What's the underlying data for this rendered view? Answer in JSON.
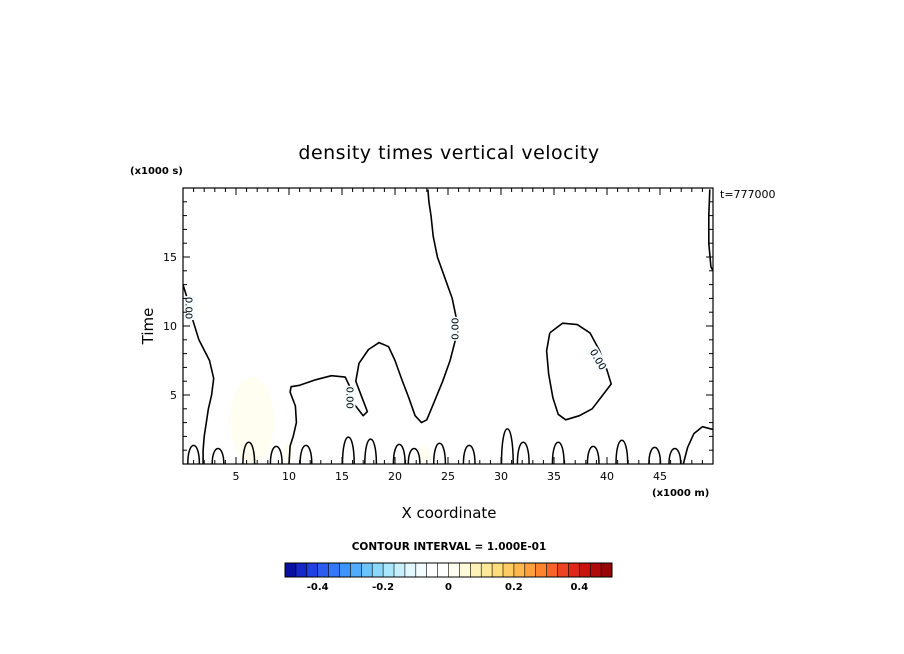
{
  "chart_data": {
    "type": "contour",
    "title": "density times vertical velocity",
    "xlabel": "X coordinate",
    "ylabel": "Time",
    "x_unit_label": "(x1000 m)",
    "y_unit_label": "(x1000 s)",
    "time_annotation": "t=777000",
    "xlim": [
      0,
      50
    ],
    "ylim": [
      0,
      20
    ],
    "x_ticks": [
      5,
      10,
      15,
      20,
      25,
      30,
      35,
      40,
      45
    ],
    "x_tick_labels": [
      "5",
      "10",
      "15",
      "20",
      "25",
      "30",
      "35",
      "40",
      "45"
    ],
    "y_ticks": [
      5,
      10,
      15
    ],
    "y_tick_labels": [
      "5",
      "10",
      "15"
    ],
    "contour_interval_text": "CONTOUR INTERVAL = 1.000E-01",
    "contour_label": "0.00",
    "colorbar": {
      "min": -0.5,
      "max": 0.5,
      "tick_values": [
        -0.4,
        -0.2,
        0,
        0.2,
        0.4
      ],
      "tick_labels": [
        "-0.4",
        "-0.2",
        "0",
        "0.2",
        "0.4"
      ],
      "colors": [
        "#0a10a0",
        "#1628c8",
        "#2040e0",
        "#2a5cf0",
        "#3478f8",
        "#3e94fc",
        "#52acfc",
        "#6cc4fc",
        "#8cd8fc",
        "#aae6fc",
        "#c8f0fc",
        "#e2f8fe",
        "#f2fcfe",
        "#ffffff",
        "#ffffff",
        "#fffef0",
        "#fffad8",
        "#fff2b8",
        "#ffe898",
        "#ffdc7c",
        "#ffcc64",
        "#ffb84c",
        "#ffa03c",
        "#ff8430",
        "#f86428",
        "#ec4420",
        "#dc2818",
        "#c81410",
        "#b00a0a",
        "#960606"
      ]
    },
    "zero_contours": [
      {
        "name": "main-boundary",
        "points": [
          [
            23.1,
            19.9
          ],
          [
            23.2,
            19.0
          ],
          [
            23.4,
            18.0
          ],
          [
            23.6,
            16.5
          ],
          [
            24.0,
            15.0
          ],
          [
            24.7,
            13.5
          ],
          [
            25.4,
            12.0
          ],
          [
            25.8,
            10.5
          ],
          [
            25.7,
            9.0
          ],
          [
            25.2,
            7.5
          ],
          [
            24.5,
            6.0
          ],
          [
            23.7,
            4.5
          ],
          [
            23.0,
            3.2
          ],
          [
            22.5,
            3.0
          ],
          [
            21.9,
            3.5
          ],
          [
            21.3,
            4.8
          ],
          [
            20.6,
            6.2
          ],
          [
            20.0,
            7.5
          ],
          [
            19.4,
            8.5
          ],
          [
            18.5,
            8.8
          ],
          [
            17.5,
            8.3
          ],
          [
            16.6,
            7.3
          ],
          [
            16.3,
            6.0
          ],
          [
            16.9,
            4.8
          ],
          [
            17.4,
            3.8
          ],
          [
            17.0,
            3.5
          ],
          [
            16.2,
            4.3
          ],
          [
            15.8,
            5.5
          ],
          [
            15.3,
            6.3
          ],
          [
            14.0,
            6.4
          ],
          [
            12.5,
            6.1
          ],
          [
            11.0,
            5.7
          ],
          [
            10.2,
            5.6
          ],
          [
            10.1,
            5.2
          ],
          [
            10.6,
            4.2
          ],
          [
            10.7,
            3.0
          ],
          [
            10.4,
            2.0
          ],
          [
            10.1,
            1.3
          ],
          [
            10.0,
            0.0
          ]
        ]
      },
      {
        "name": "left-edge",
        "points": [
          [
            0.0,
            13.0
          ],
          [
            0.4,
            12.0
          ],
          [
            0.9,
            10.5
          ],
          [
            1.5,
            9.0
          ],
          [
            2.5,
            7.5
          ],
          [
            2.9,
            6.2
          ],
          [
            2.7,
            5.0
          ],
          [
            2.4,
            4.0
          ],
          [
            2.2,
            3.0
          ],
          [
            2.0,
            2.0
          ],
          [
            1.9,
            1.0
          ],
          [
            1.9,
            0.0
          ]
        ]
      },
      {
        "name": "right-bubble",
        "points": [
          [
            34.6,
            9.5
          ],
          [
            35.8,
            10.2
          ],
          [
            37.2,
            10.1
          ],
          [
            38.4,
            9.5
          ],
          [
            39.3,
            8.2
          ],
          [
            40.0,
            6.8
          ],
          [
            40.4,
            5.8
          ],
          [
            39.6,
            5.0
          ],
          [
            38.6,
            4.0
          ],
          [
            37.4,
            3.5
          ],
          [
            36.1,
            3.2
          ],
          [
            35.4,
            3.6
          ],
          [
            34.9,
            4.8
          ],
          [
            34.5,
            6.5
          ],
          [
            34.3,
            8.2
          ],
          [
            34.6,
            9.5
          ]
        ]
      },
      {
        "name": "right-edge",
        "points": [
          [
            49.7,
            19.9
          ],
          [
            49.6,
            18.0
          ],
          [
            49.6,
            16.0
          ],
          [
            49.8,
            14.3
          ],
          [
            50.0,
            14.0
          ]
        ]
      },
      {
        "name": "bottom-right",
        "points": [
          [
            47.2,
            0.0
          ],
          [
            47.6,
            1.2
          ],
          [
            48.2,
            2.2
          ],
          [
            49.0,
            2.7
          ],
          [
            50.0,
            2.5
          ]
        ]
      }
    ],
    "zero_contour_labels": [
      {
        "x": 0.6,
        "y": 11.3,
        "angle": 90
      },
      {
        "x": 25.6,
        "y": 9.8,
        "angle": -90
      },
      {
        "x": 15.8,
        "y": 4.8,
        "angle": 90
      },
      {
        "x": 39.2,
        "y": 7.6,
        "angle": 60
      }
    ],
    "positive_regions": [
      {
        "x": [
          4.5,
          8.6
        ],
        "y": [
          0.0,
          6.3
        ],
        "value": 0.03
      },
      {
        "x": [
          9.5,
          10.4
        ],
        "y": [
          0.0,
          1.6
        ],
        "value": 0.02
      },
      {
        "x": [
          22.3,
          23.3
        ],
        "y": [
          0.0,
          1.3
        ],
        "value": 0.02
      }
    ],
    "negative_regions": [
      {
        "x": [
          10.2,
          50.0
        ],
        "y": [
          0.0,
          20.0
        ],
        "value": -0.015
      }
    ]
  }
}
